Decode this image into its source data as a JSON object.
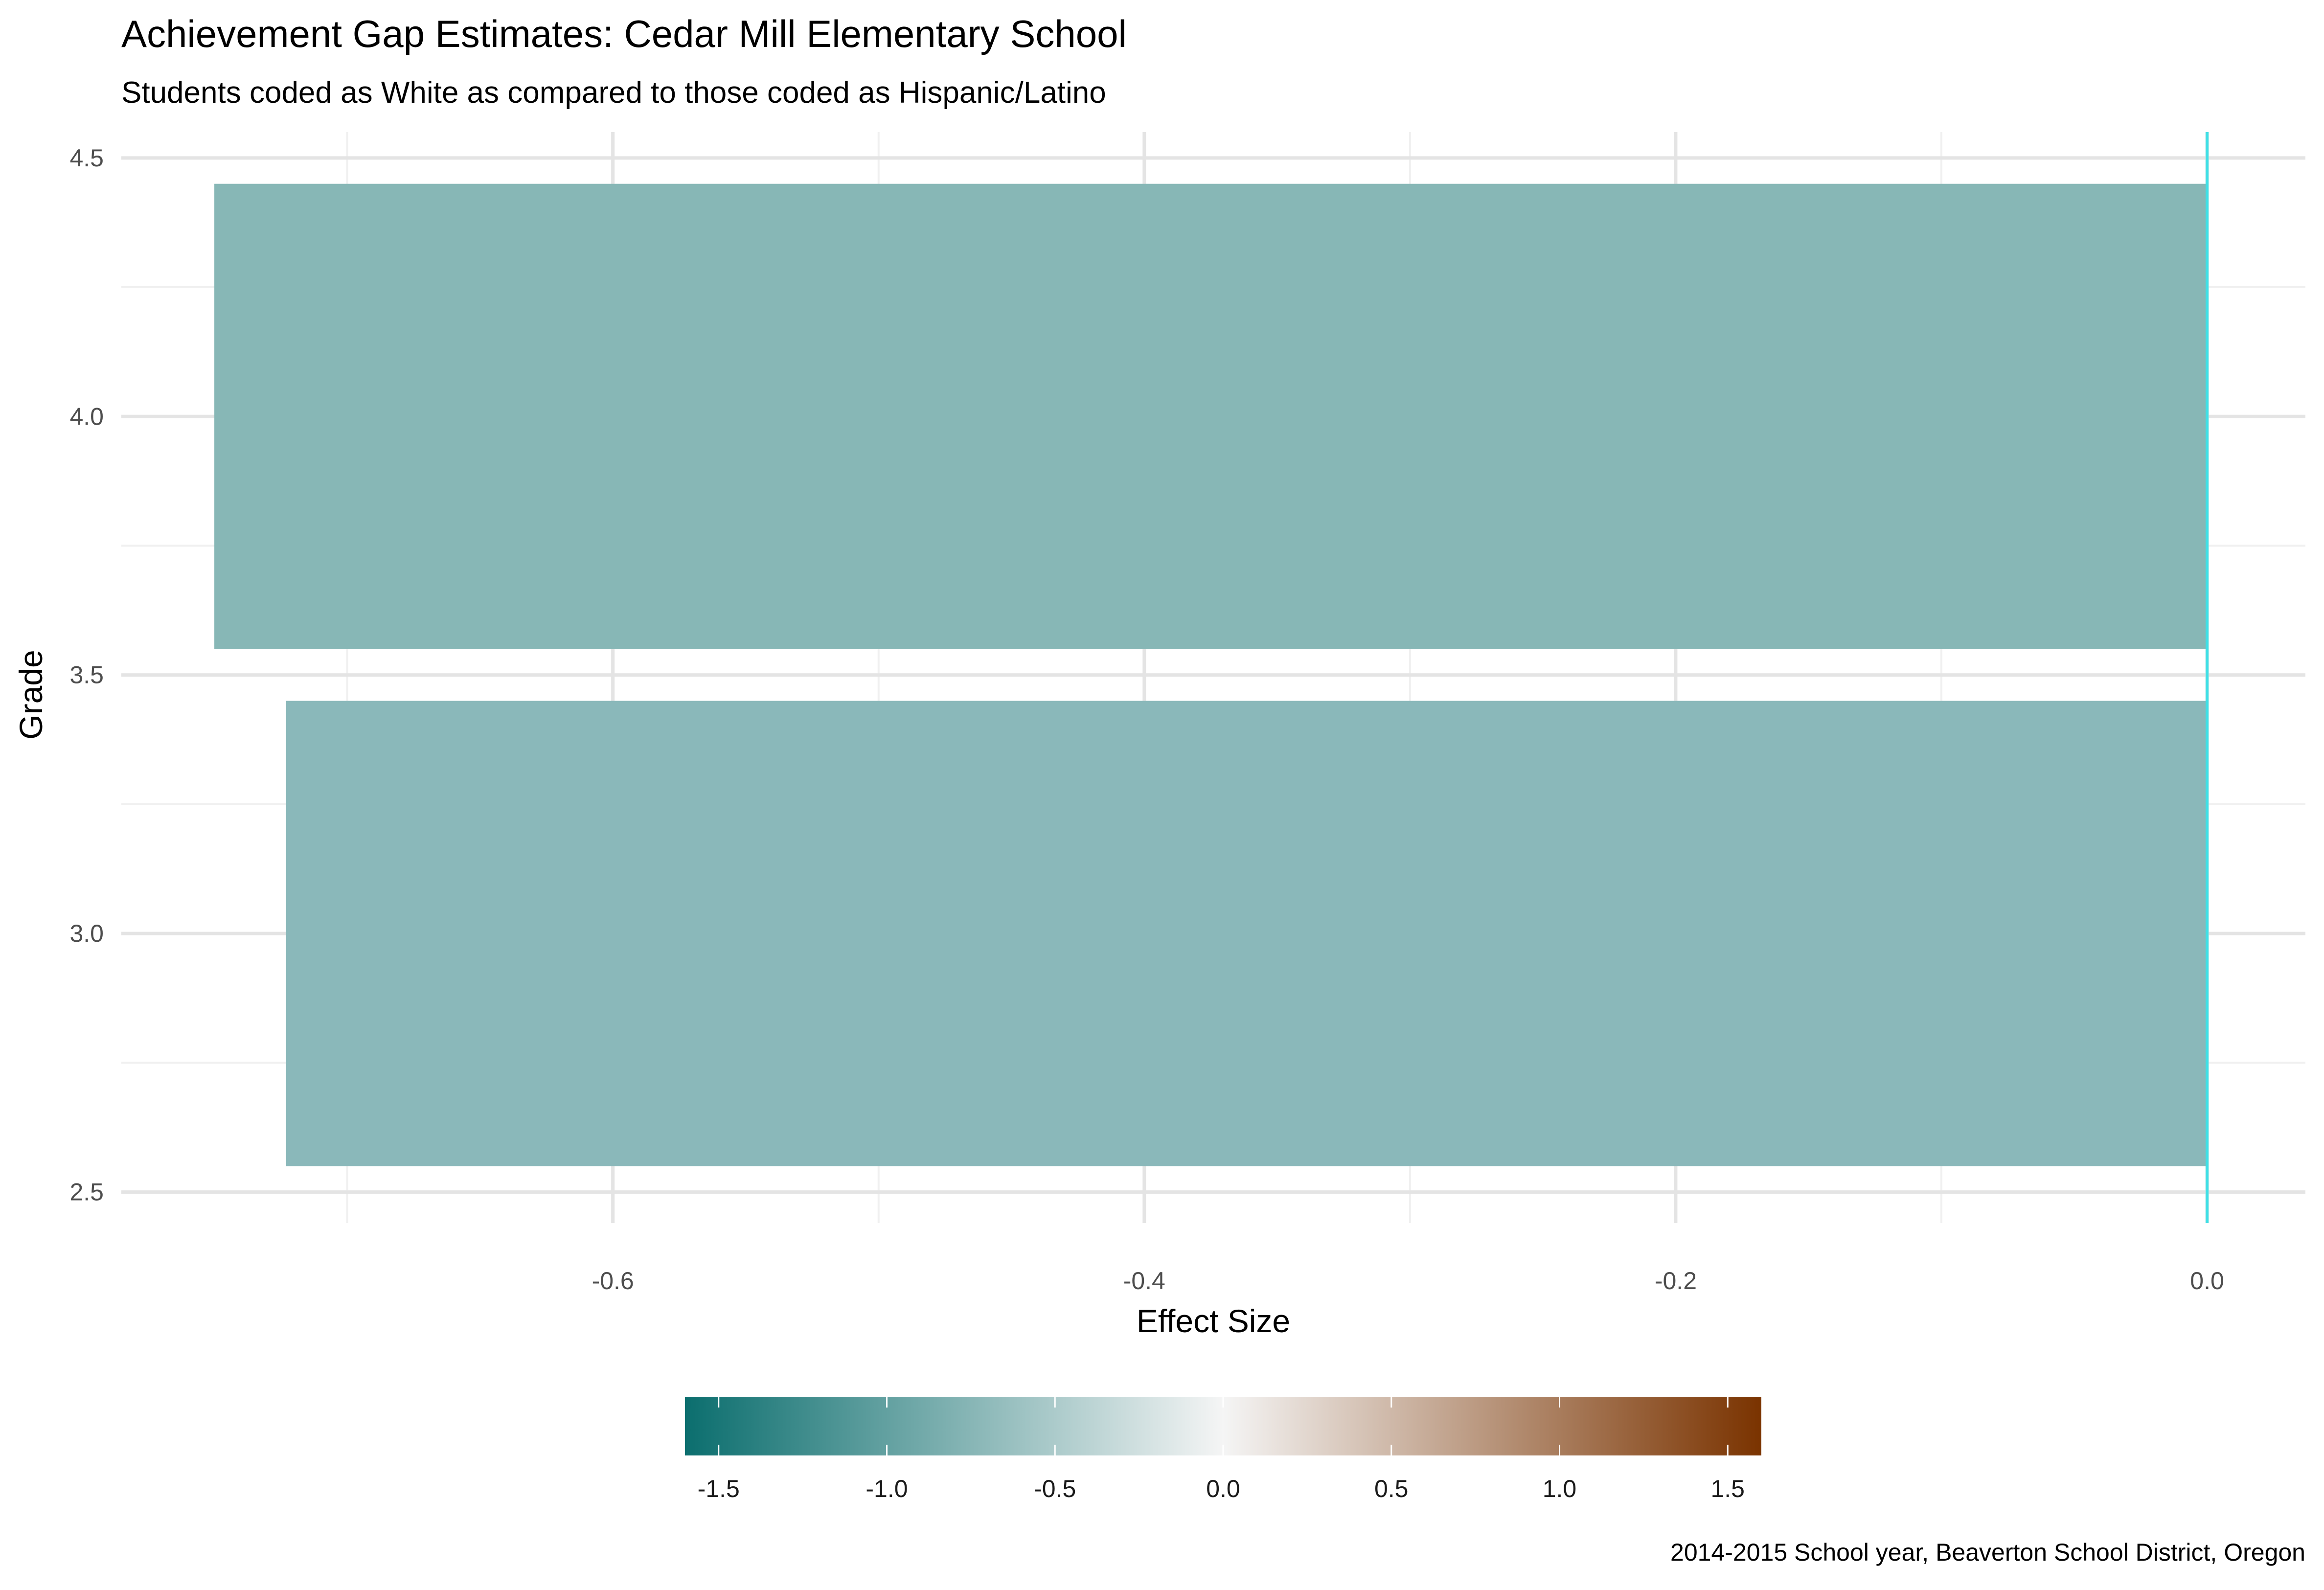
{
  "chart_data": {
    "type": "bar",
    "orientation": "horizontal",
    "title": "Achievement Gap Estimates: Cedar Mill Elementary School",
    "subtitle": "Students coded as White as compared to those coded as Hispanic/Latino",
    "xlabel": "Effect Size",
    "ylabel": "Grade",
    "caption": "2014-2015 School year, Beaverton School District, Oregon",
    "categories": [
      3,
      4
    ],
    "values": [
      -0.723,
      -0.75
    ],
    "bar_colors": [
      "#8ab8ba",
      "#87b7b6"
    ],
    "xlim": [
      -0.785,
      0.037
    ],
    "ylim": [
      2.44,
      4.55
    ],
    "x_ticks": [
      -0.6,
      -0.4,
      -0.2,
      0.0
    ],
    "x_tick_labels": [
      "-0.6",
      "-0.4",
      "-0.2",
      "0.0"
    ],
    "y_ticks": [
      2.5,
      3.0,
      3.5,
      4.0,
      4.5
    ],
    "y_tick_labels": [
      "2.5",
      "3.0",
      "3.5",
      "4.0",
      "4.5"
    ],
    "reference_line": {
      "x": 0.0,
      "color": "#3fe0e6"
    },
    "grid": true,
    "legend": {
      "placement": "bottom",
      "type": "colorbar",
      "range": [
        -1.6,
        1.6
      ],
      "ticks": [
        -1.5,
        -1.0,
        -0.5,
        0.0,
        0.5,
        1.0,
        1.5
      ],
      "tick_labels": [
        "-1.5",
        "-1.0",
        "-0.5",
        "0.0",
        "0.5",
        "1.0",
        "1.5"
      ],
      "color_low": "#0b6e6e",
      "color_mid": "#f5f5f5",
      "color_high": "#7a3300"
    }
  }
}
